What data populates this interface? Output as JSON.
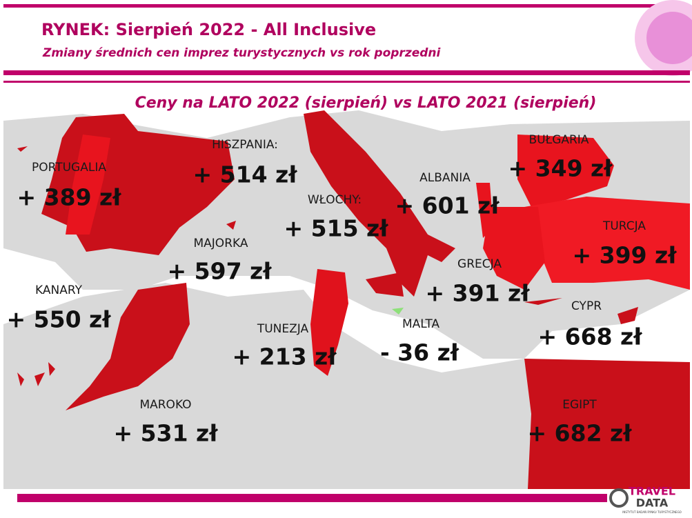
{
  "header": {
    "title": "RYNEK: Sierpień 2022 - All Inclusive",
    "subtitle": "Zmiany średnich cen imprez turystycznych vs rok poprzedni"
  },
  "heading": "Ceny na LATO 2022 (sierpień) vs  LATO 2021 (sierpień)",
  "countries": [
    {
      "name": "PORTUGALIA",
      "price": "+ 389 zł"
    },
    {
      "name": "HISZPANIA:",
      "price": "+ 514 zł"
    },
    {
      "name": "WŁOCHY:",
      "price": "+ 515 zł"
    },
    {
      "name": "ALBANIA",
      "price": "+ 601 zł"
    },
    {
      "name": "BUŁGARIA",
      "price": "+ 349 zł"
    },
    {
      "name": "TURCJA",
      "price": "+ 399 zł"
    },
    {
      "name": "MAJORKA",
      "price": "+ 597 zł"
    },
    {
      "name": "GRECJA",
      "price": "+ 391 zł"
    },
    {
      "name": "CYPR",
      "price": "+ 668 zł"
    },
    {
      "name": "KANARY",
      "price": "+ 550 zł"
    },
    {
      "name": "MALTA",
      "price": "- 36 zł"
    },
    {
      "name": "TUNEZJA",
      "price": "+ 213 zł"
    },
    {
      "name": "MAROKO",
      "price": "+ 531 zł"
    },
    {
      "name": "EGIPT",
      "price": "+ 682 zł"
    }
  ],
  "logo": {
    "top": "TRAVEL",
    "bottom": "DATA",
    "caption": "INSTYTUT BADAŃ RYNKU TURYSTYCZNEGO"
  }
}
